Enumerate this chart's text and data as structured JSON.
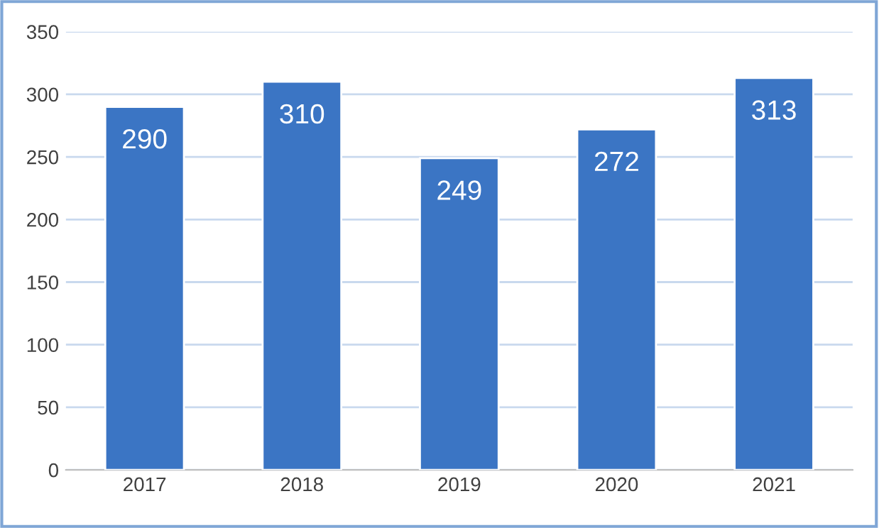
{
  "chart_data": {
    "type": "bar",
    "categories": [
      "2017",
      "2018",
      "2019",
      "2020",
      "2021"
    ],
    "values": [
      290,
      310,
      249,
      272,
      313
    ],
    "color": "#3b75c4",
    "ylim": [
      0,
      350
    ],
    "yticks": [
      0,
      50,
      100,
      150,
      200,
      250,
      300,
      350
    ],
    "grid": "y",
    "data_labels": true
  }
}
